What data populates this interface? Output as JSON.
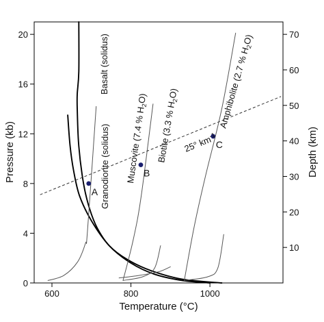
{
  "axes": {
    "x_title": "Temperature (°C)",
    "y_left_title": "Pressure (kb)",
    "y_right_title": "Depth (km)",
    "x_range": [
      555,
      1185
    ],
    "y_left_range": [
      0,
      21
    ],
    "y_right_range": [
      0,
      73.5
    ],
    "x_ticks": [
      {
        "value": 600,
        "label": "600"
      },
      {
        "value": 800,
        "label": "800"
      },
      {
        "value": 1000,
        "label": "1000"
      }
    ],
    "y_left_ticks": [
      {
        "value": 0,
        "label": "0"
      },
      {
        "value": 4,
        "label": "4"
      },
      {
        "value": 8,
        "label": "8"
      },
      {
        "value": 12,
        "label": "12"
      },
      {
        "value": 16,
        "label": "16"
      },
      {
        "value": 20,
        "label": "20"
      }
    ],
    "y_right_ticks": [
      {
        "value": 10,
        "label": "10"
      },
      {
        "value": 20,
        "label": "20"
      },
      {
        "value": 30,
        "label": "30"
      },
      {
        "value": 40,
        "label": "40"
      },
      {
        "value": 50,
        "label": "50"
      },
      {
        "value": 60,
        "label": "60"
      },
      {
        "value": 70,
        "label": "70"
      }
    ]
  },
  "curves": [
    {
      "id": "basalt-solidus",
      "label": "Basalt (solidus)",
      "stroke": "#000000",
      "weight": "heavy",
      "points": [
        [
          668,
          21
        ],
        [
          668,
          17
        ],
        [
          664,
          15.2
        ],
        [
          664,
          14
        ],
        [
          668,
          11
        ],
        [
          680,
          8
        ],
        [
          695,
          6
        ],
        [
          715,
          4.4
        ],
        [
          745,
          3
        ],
        [
          790,
          1.9
        ],
        [
          850,
          1
        ],
        [
          930,
          0.3
        ],
        [
          1030,
          0
        ]
      ]
    },
    {
      "id": "granodiorite-solidus",
      "label": "Granodiorite (solidus)",
      "stroke": "#000000",
      "weight": "heavy",
      "points": [
        [
          640,
          13.5
        ],
        [
          646,
          11
        ],
        [
          655,
          9
        ],
        [
          670,
          7
        ],
        [
          700,
          5
        ],
        [
          745,
          3
        ],
        [
          800,
          1.6
        ],
        [
          860,
          0.7
        ],
        [
          930,
          0.2
        ],
        [
          1000,
          0
        ]
      ]
    },
    {
      "id": "muscovite-dehydration",
      "label": "Muscovite (7.4 % H2O)",
      "stroke": "#555555",
      "weight": "light",
      "points": [
        [
          712,
          14.2
        ],
        [
          690,
          4.2
        ],
        [
          685,
          3.2
        ],
        [
          665,
          1.7
        ],
        [
          630,
          0.6
        ],
        [
          590,
          0.2
        ]
      ]
    },
    {
      "id": "biotite-dehydration",
      "label": "Biotite (3.3 % H2O)",
      "stroke": "#555555",
      "weight": "light",
      "points": [
        [
          856,
          14.4
        ],
        [
          826,
          7
        ],
        [
          806,
          3.5
        ],
        [
          780,
          0.2
        ]
      ]
    },
    {
      "id": "biotite-low-branch",
      "label": "",
      "stroke": "#555555",
      "weight": "light",
      "points": [
        [
          780,
          0.2
        ],
        [
          830,
          0.5
        ],
        [
          860,
          1.2
        ],
        [
          875,
          3
        ]
      ]
    },
    {
      "id": "amphibolite-dehydration",
      "label": "Amphibolite (2.7 % H2O)",
      "stroke": "#555555",
      "weight": "light",
      "points": [
        [
          1065,
          20.1
        ],
        [
          1030,
          14
        ],
        [
          988,
          8.5
        ],
        [
          960,
          4.5
        ],
        [
          935,
          0.2
        ]
      ]
    },
    {
      "id": "amphibolite-low-branch",
      "label": "",
      "stroke": "#555555",
      "weight": "light",
      "points": [
        [
          935,
          0.2
        ],
        [
          995,
          0.5
        ],
        [
          1020,
          1.2
        ],
        [
          1035,
          3.9
        ]
      ]
    },
    {
      "id": "low-temperature-tail",
      "label": "",
      "stroke": "#555555",
      "weight": "light",
      "points": [
        [
          770,
          0.4
        ],
        [
          820,
          0.6
        ],
        [
          870,
          0.9
        ],
        [
          900,
          1.3
        ]
      ]
    }
  ],
  "geotherm": {
    "label": "25° km",
    "points": [
      [
        570,
        7.1
      ],
      [
        1180,
        15
      ]
    ]
  },
  "points": [
    {
      "id": "A",
      "label": "A",
      "T": 693,
      "P": 8
    },
    {
      "id": "B",
      "label": "B",
      "T": 825,
      "P": 9.5
    },
    {
      "id": "C",
      "label": "C",
      "T": 1008,
      "P": 11.8
    }
  ]
}
